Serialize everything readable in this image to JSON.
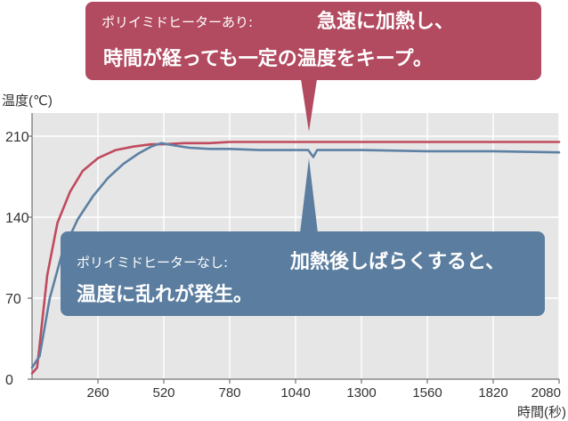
{
  "chart_data": {
    "type": "line",
    "ylabel": "温度(℃)",
    "xlabel": "時間(秒)",
    "xlim": [
      0,
      2080
    ],
    "ylim": [
      0,
      230
    ],
    "xticks": [
      260,
      520,
      780,
      1040,
      1300,
      1560,
      1820,
      2080
    ],
    "yticks": [
      0,
      70,
      140,
      210
    ],
    "grid": true,
    "series": [
      {
        "color": "#c04a5e",
        "points": [
          [
            0,
            5
          ],
          [
            20,
            10
          ],
          [
            60,
            90
          ],
          [
            100,
            135
          ],
          [
            150,
            162
          ],
          [
            200,
            180
          ],
          [
            260,
            191
          ],
          [
            330,
            198
          ],
          [
            400,
            201
          ],
          [
            470,
            203
          ],
          [
            520,
            203
          ],
          [
            600,
            204
          ],
          [
            700,
            204
          ],
          [
            780,
            205
          ],
          [
            900,
            205
          ],
          [
            1040,
            205
          ],
          [
            1200,
            205
          ],
          [
            1300,
            205
          ],
          [
            1560,
            205
          ],
          [
            1820,
            205
          ],
          [
            2080,
            205
          ]
        ]
      },
      {
        "color": "#5e80a3",
        "points": [
          [
            0,
            10
          ],
          [
            30,
            20
          ],
          [
            70,
            70
          ],
          [
            120,
            110
          ],
          [
            180,
            138
          ],
          [
            240,
            158
          ],
          [
            300,
            174
          ],
          [
            360,
            186
          ],
          [
            420,
            195
          ],
          [
            470,
            201
          ],
          [
            510,
            204
          ],
          [
            560,
            202
          ],
          [
            620,
            200
          ],
          [
            700,
            199
          ],
          [
            780,
            199
          ],
          [
            900,
            198
          ],
          [
            1000,
            198
          ],
          [
            1060,
            198
          ],
          [
            1090,
            198
          ],
          [
            1110,
            192
          ],
          [
            1125,
            198
          ],
          [
            1200,
            198
          ],
          [
            1300,
            198
          ],
          [
            1560,
            197
          ],
          [
            1820,
            197
          ],
          [
            2080,
            196
          ]
        ]
      }
    ]
  },
  "callout_top": {
    "color": "#b24a60",
    "prefix": "ポリイミドヒーターあり:",
    "line1": "急速に加熱し、",
    "line2": "時間が経っても一定の温度をキープ。"
  },
  "callout_bottom": {
    "color": "#5b7d9f",
    "prefix": "ポリイミドヒーターなし:",
    "line1": "加熱後しばらくすると、",
    "line2": "温度に乱れが発生。"
  }
}
